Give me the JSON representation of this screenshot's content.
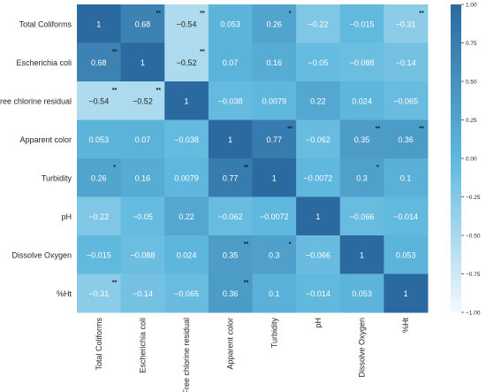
{
  "chart_data": {
    "type": "heatmap",
    "title": "",
    "xlabel": "",
    "ylabel": "",
    "labels": [
      "Total Coliforms",
      "Escherichia coli",
      "Free chlorine residual",
      "Apparent color",
      "Turbidity",
      "pH",
      "Dissolve Oxygen",
      "%Ht"
    ],
    "values": [
      [
        1,
        0.68,
        -0.54,
        0.053,
        0.26,
        -0.22,
        -0.015,
        -0.31
      ],
      [
        0.68,
        1,
        -0.52,
        0.07,
        0.16,
        -0.05,
        -0.088,
        -0.14
      ],
      [
        -0.54,
        -0.52,
        1,
        -0.038,
        0.0079,
        0.22,
        0.024,
        -0.065
      ],
      [
        0.053,
        0.07,
        -0.038,
        1,
        0.77,
        -0.062,
        0.35,
        0.36
      ],
      [
        0.26,
        0.16,
        0.0079,
        0.77,
        1,
        -0.0072,
        0.3,
        0.1
      ],
      [
        -0.22,
        -0.05,
        0.22,
        -0.062,
        -0.0072,
        1,
        -0.066,
        -0.014
      ],
      [
        -0.015,
        -0.088,
        0.024,
        0.35,
        0.3,
        -0.066,
        1,
        0.053
      ],
      [
        -0.31,
        -0.14,
        -0.065,
        0.36,
        0.1,
        -0.014,
        0.053,
        1
      ]
    ],
    "cell_labels": [
      [
        "1",
        "0.68",
        "−0.54",
        "0.053",
        "0.26",
        "−0.22",
        "−0.015",
        "−0.31"
      ],
      [
        "0.68",
        "1",
        "−0.52",
        "0.07",
        "0.16",
        "−0.05",
        "−0.088",
        "−0.14"
      ],
      [
        "−0.54",
        "−0.52",
        "1",
        "−0.038",
        "0.0079",
        "0.22",
        "0.024",
        "−0.065"
      ],
      [
        "0.053",
        "0.07",
        "−0.038",
        "1",
        "0.77",
        "−0.062",
        "0.35",
        "0.36"
      ],
      [
        "0.26",
        "0.16",
        "0.0079",
        "0.77",
        "1",
        "−0.0072",
        "0.3",
        "0.1"
      ],
      [
        "−0.22",
        "−0.05",
        "0.22",
        "−0.062",
        "−0.0072",
        "1",
        "−0.066",
        "−0.014"
      ],
      [
        "−0.015",
        "−0.088",
        "0.024",
        "0.35",
        "0.3",
        "−0.066",
        "1",
        "0.053"
      ],
      [
        "−0.31",
        "−0.14",
        "−0.065",
        "0.36",
        "0.1",
        "−0.014",
        "0.053",
        "1"
      ]
    ],
    "significance": [
      [
        "",
        "**",
        "**",
        "",
        "*",
        "",
        "",
        "**"
      ],
      [
        "**",
        "",
        "**",
        "",
        "",
        "",
        "",
        ""
      ],
      [
        "**",
        "**",
        "",
        "",
        "",
        "",
        "",
        ""
      ],
      [
        "",
        "",
        "",
        "",
        "**",
        "",
        "**",
        "**"
      ],
      [
        "*",
        "",
        "",
        "**",
        "",
        "",
        "*",
        ""
      ],
      [
        "",
        "",
        "",
        "",
        "",
        "",
        "",
        ""
      ],
      [
        "",
        "",
        "",
        "**",
        "*",
        "",
        "",
        ""
      ],
      [
        "**",
        "",
        "",
        "**",
        "",
        "",
        "",
        ""
      ]
    ],
    "color_range": [
      -1,
      1
    ],
    "colorbar_ticks": [
      1.0,
      0.75,
      0.5,
      0.25,
      0.0,
      -0.25,
      -0.5,
      -0.75,
      -1.0
    ],
    "colorbar_tick_labels": [
      "1.00",
      "0.75",
      "0.50",
      "0.25",
      "0.00",
      "−0.25",
      "−0.50",
      "−0.75",
      "−1.00"
    ],
    "colors": {
      "low": "#f4f9fd",
      "mid": "#5fb8de",
      "high": "#2b6aa0"
    },
    "legend_position": "right"
  }
}
